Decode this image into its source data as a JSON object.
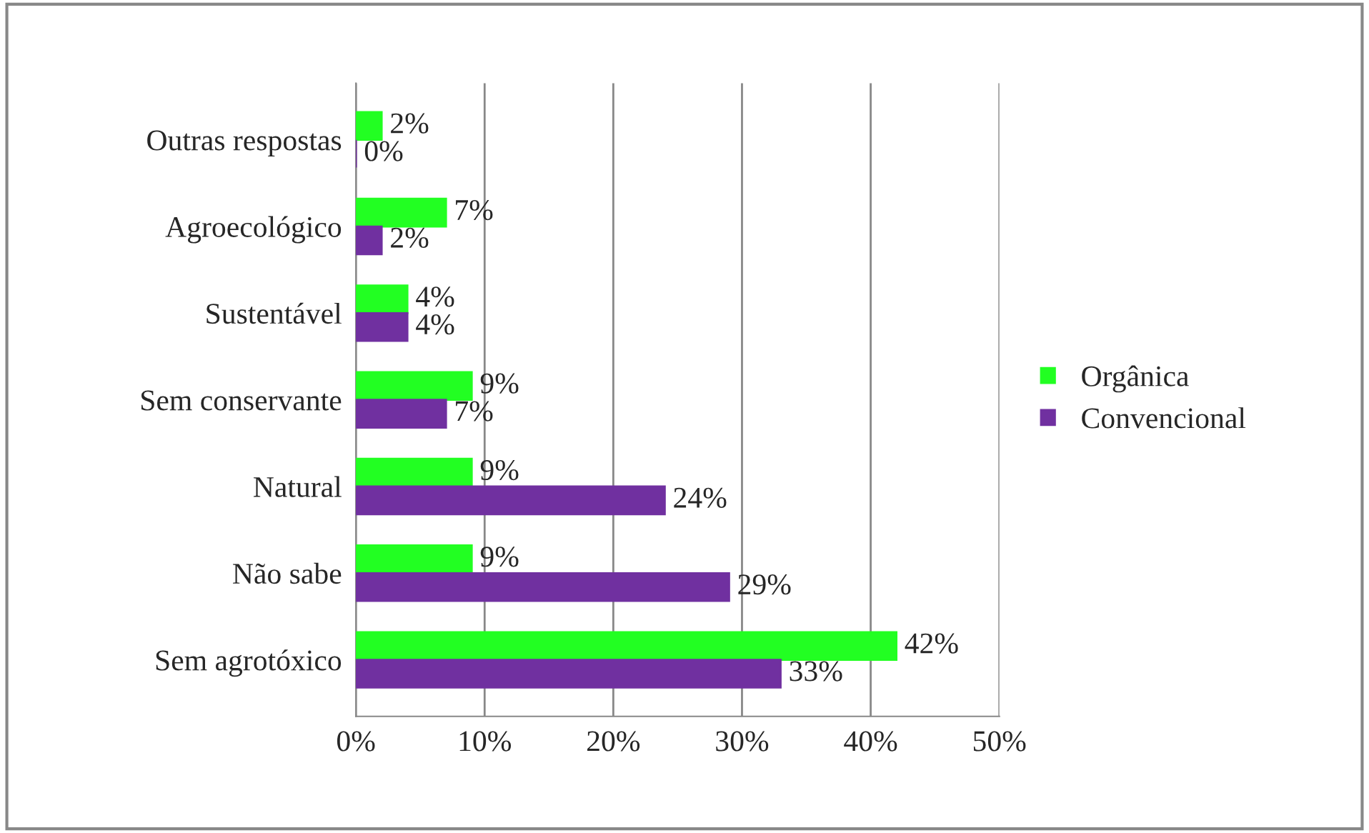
{
  "chart_data": {
    "type": "bar",
    "orientation": "horizontal",
    "categories": [
      "Outras respostas",
      "Agroecológico",
      "Sustentável",
      "Sem conservante",
      "Natural",
      "Não sabe",
      "Sem agrotóxico"
    ],
    "series": [
      {
        "name": "Orgânica",
        "color": "#22ff22",
        "values": [
          2,
          7,
          4,
          9,
          9,
          9,
          42
        ],
        "value_labels": [
          "2%",
          "7%",
          "4%",
          "9%",
          "9%",
          "9%",
          "42%"
        ]
      },
      {
        "name": "Convencional",
        "color": "#7030a0",
        "values": [
          0,
          2,
          4,
          7,
          24,
          29,
          33
        ],
        "value_labels": [
          "0%",
          "2%",
          "4%",
          "7%",
          "24%",
          "29%",
          "33%"
        ]
      }
    ],
    "xlim": [
      0,
      50
    ],
    "xticks": [
      {
        "value": 0,
        "label": "0%"
      },
      {
        "value": 10,
        "label": "10%"
      },
      {
        "value": 20,
        "label": "20%"
      },
      {
        "value": 30,
        "label": "30%"
      },
      {
        "value": 40,
        "label": "40%"
      },
      {
        "value": 50,
        "label": "50%"
      }
    ],
    "grid": "x",
    "legend": "right"
  }
}
